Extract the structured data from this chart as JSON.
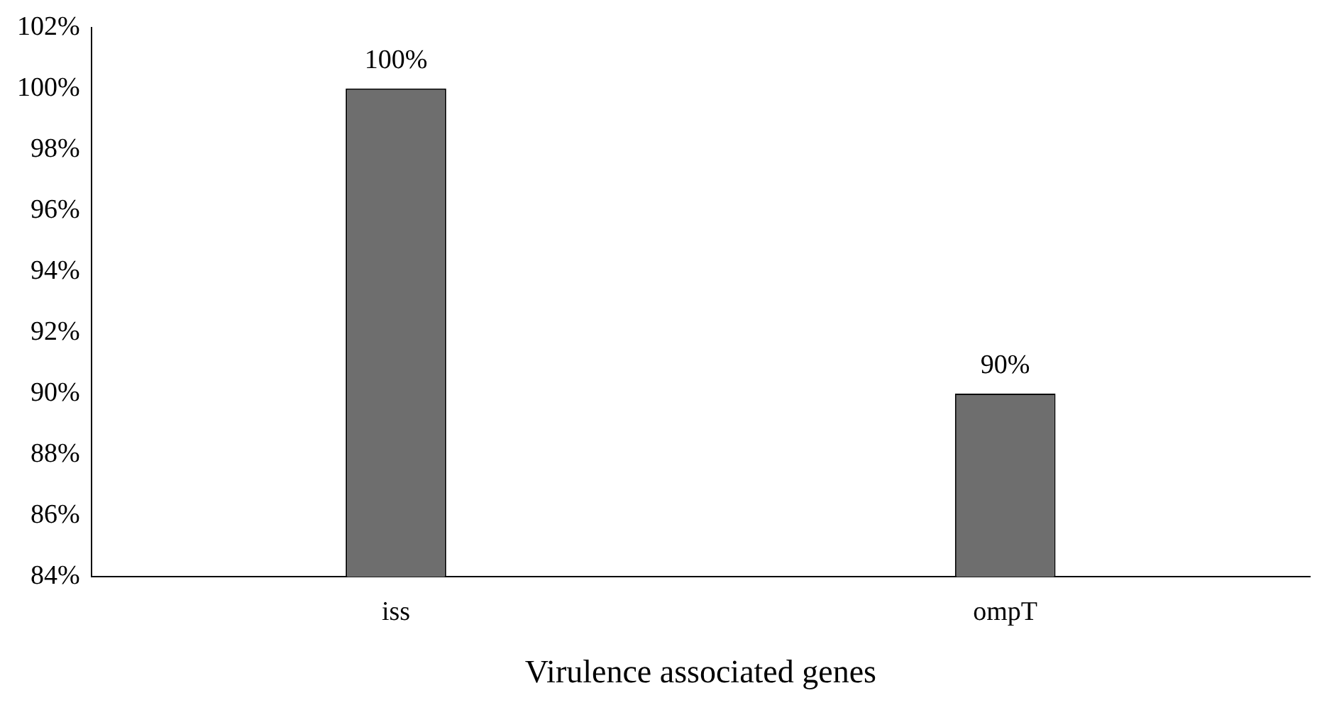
{
  "chart_data": {
    "type": "bar",
    "xlabel": "Virulence associated genes",
    "categories": [
      "iss",
      "ompT"
    ],
    "values": [
      100,
      90
    ],
    "value_labels": [
      "100%",
      "90%"
    ],
    "color": "#6e6e6e",
    "ylim": [
      84,
      102
    ],
    "yticks": [
      {
        "value": 84,
        "label": "84%"
      },
      {
        "value": 86,
        "label": "86%"
      },
      {
        "value": 88,
        "label": "88%"
      },
      {
        "value": 90,
        "label": "90%"
      },
      {
        "value": 92,
        "label": "92%"
      },
      {
        "value": 94,
        "label": "94%"
      },
      {
        "value": 96,
        "label": "96%"
      },
      {
        "value": 98,
        "label": "98%"
      },
      {
        "value": 100,
        "label": "100%"
      },
      {
        "value": 102,
        "label": "102%"
      }
    ],
    "grid": false,
    "legend": false
  }
}
